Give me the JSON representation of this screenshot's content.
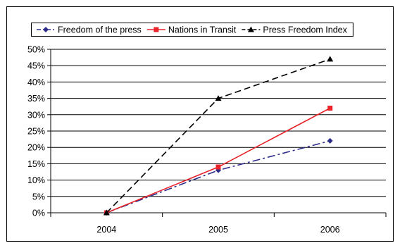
{
  "chart_data": {
    "type": "line",
    "title": "",
    "xlabel": "",
    "ylabel": "",
    "categories": [
      "2004",
      "2005",
      "2006"
    ],
    "ylim": [
      0,
      50
    ],
    "y_ticks": [
      "0%",
      "5%",
      "10%",
      "15%",
      "20%",
      "25%",
      "30%",
      "35%",
      "40%",
      "45%",
      "50%"
    ],
    "grid": "horizontal",
    "legend_position": "top",
    "series": [
      {
        "name": "Freedom of the press",
        "values": [
          0,
          13,
          22
        ],
        "color": "#2e2e8a",
        "dash": "dash-dot",
        "marker": "diamond"
      },
      {
        "name": "Nations in Transit",
        "values": [
          0,
          14,
          32
        ],
        "color": "#e8232a",
        "dash": "solid",
        "marker": "square"
      },
      {
        "name": "Press Freedom Index",
        "values": [
          0,
          35,
          47
        ],
        "color": "#000000",
        "dash": "dashed",
        "marker": "triangle"
      }
    ]
  }
}
